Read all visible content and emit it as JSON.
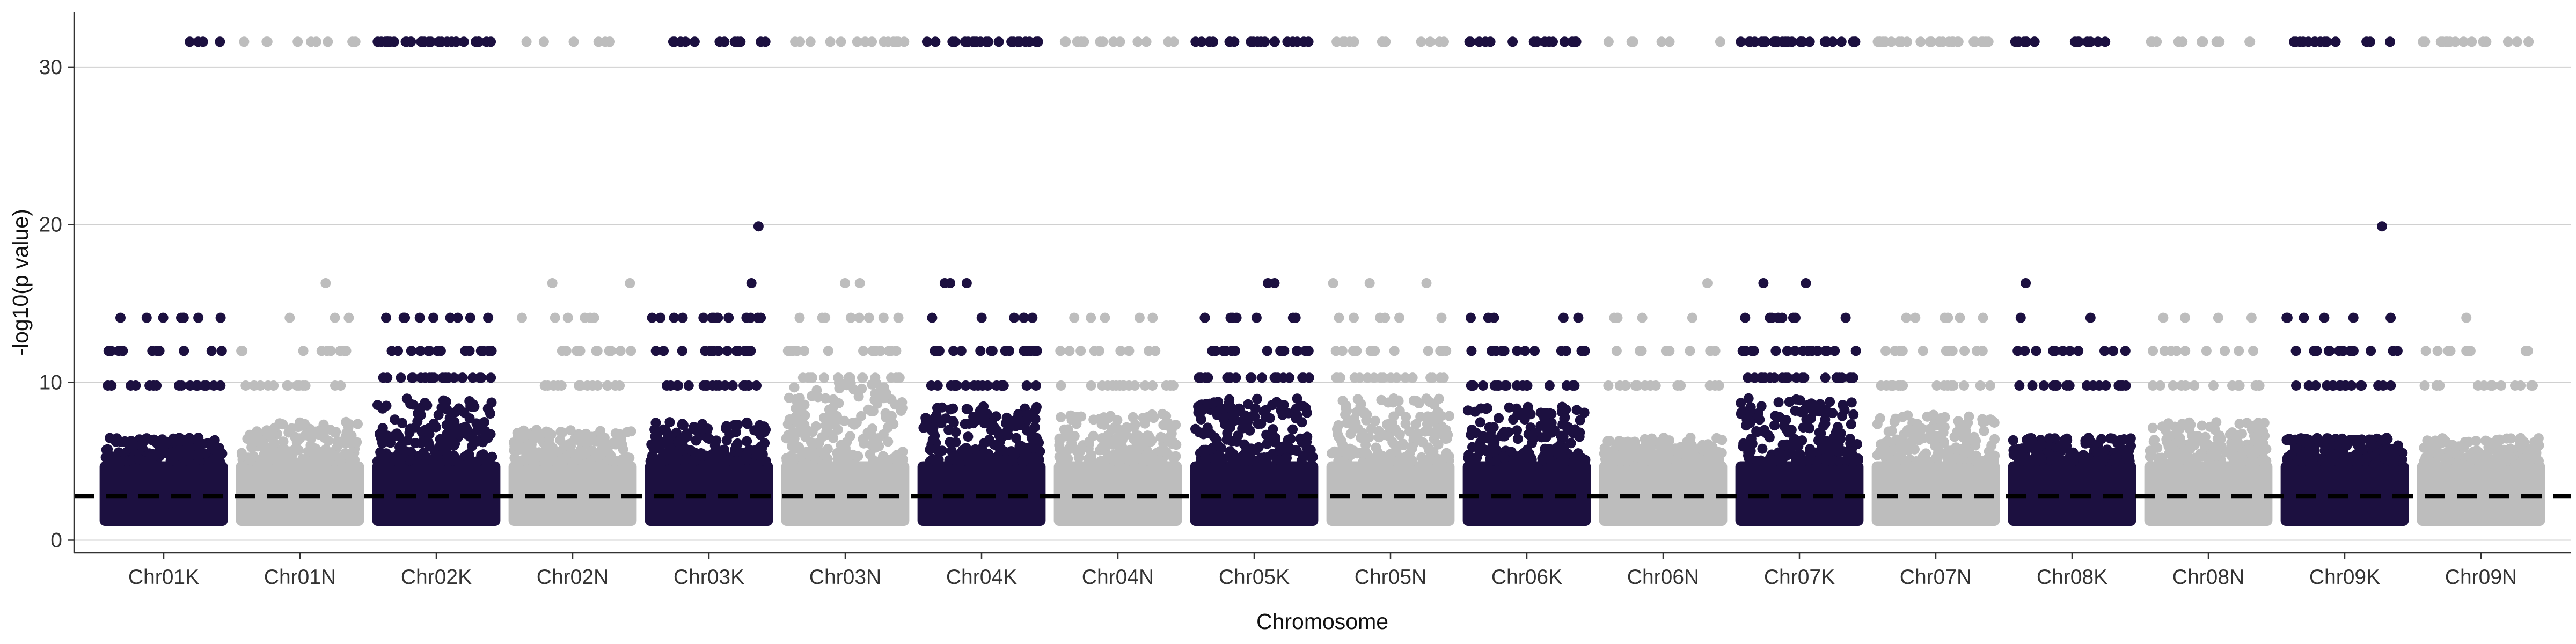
{
  "chart_data": {
    "type": "scatter",
    "title": "",
    "xlabel": "Chromosome",
    "ylabel": "-log10(p value)",
    "ylim": [
      -0.8,
      33.5
    ],
    "y_ticks": [
      0,
      10,
      20,
      30
    ],
    "y_tick_labels": [
      "0",
      "10",
      "20",
      "30"
    ],
    "grid": "horizontal major lines at y=0, 10, 20, 30",
    "legend": "none",
    "threshold": {
      "y": 2.8,
      "style": "dashed",
      "color": "#000000"
    },
    "point_colors": {
      "dark": "#1c1040",
      "light": "#bdbdbd"
    },
    "categories": [
      "Chr01K",
      "Chr01N",
      "Chr02K",
      "Chr02N",
      "Chr03K",
      "Chr03N",
      "Chr04K",
      "Chr04N",
      "Chr05K",
      "Chr05N",
      "Chr06K",
      "Chr06N",
      "Chr07K",
      "Chr07N",
      "Chr08K",
      "Chr08N",
      "Chr09K",
      "Chr09N"
    ],
    "series": [
      {
        "chromosome": "Chr01K",
        "color": "dark",
        "points": [
          {
            "y": 31.6,
            "n": 4
          },
          {
            "y": 14.1,
            "n": 8
          },
          {
            "y": 12,
            "n": 10
          },
          {
            "y": 9.8,
            "n": 16
          }
        ],
        "dense_max": 6.5
      },
      {
        "chromosome": "Chr01N",
        "color": "light",
        "points": [
          {
            "y": 31.6,
            "n": 9
          },
          {
            "y": 16.3,
            "n": 1
          },
          {
            "y": 14.1,
            "n": 3
          },
          {
            "y": 12,
            "n": 10
          },
          {
            "y": 9.8,
            "n": 14
          }
        ],
        "dense_max": 7.5
      },
      {
        "chromosome": "Chr02K",
        "color": "dark",
        "points": [
          {
            "y": 31.6,
            "n": 30
          },
          {
            "y": 14.1,
            "n": 10
          },
          {
            "y": 12,
            "n": 16
          },
          {
            "y": 10.3,
            "n": 20
          }
        ],
        "dense_max": 9
      },
      {
        "chromosome": "Chr02N",
        "color": "light",
        "points": [
          {
            "y": 31.6,
            "n": 7
          },
          {
            "y": 16.3,
            "n": 2
          },
          {
            "y": 14.1,
            "n": 6
          },
          {
            "y": 12,
            "n": 10
          },
          {
            "y": 9.8,
            "n": 14
          }
        ],
        "dense_max": 7
      },
      {
        "chromosome": "Chr03K",
        "color": "dark",
        "points": [
          {
            "y": 31.6,
            "n": 12
          },
          {
            "y": 19.9,
            "n": 1
          },
          {
            "y": 16.3,
            "n": 1
          },
          {
            "y": 14.1,
            "n": 14
          },
          {
            "y": 12,
            "n": 14
          },
          {
            "y": 9.8,
            "n": 18
          }
        ],
        "dense_max": 7.5
      },
      {
        "chromosome": "Chr03N",
        "color": "light",
        "points": [
          {
            "y": 31.6,
            "n": 14
          },
          {
            "y": 16.3,
            "n": 2
          },
          {
            "y": 14.1,
            "n": 8
          },
          {
            "y": 12,
            "n": 14
          },
          {
            "y": 10.3,
            "n": 18
          }
        ],
        "dense_max": 10
      },
      {
        "chromosome": "Chr04K",
        "color": "dark",
        "points": [
          {
            "y": 31.6,
            "n": 22
          },
          {
            "y": 16.3,
            "n": 3
          },
          {
            "y": 14.1,
            "n": 6
          },
          {
            "y": 12,
            "n": 16
          },
          {
            "y": 9.8,
            "n": 18
          }
        ],
        "dense_max": 8.5
      },
      {
        "chromosome": "Chr04N",
        "color": "light",
        "points": [
          {
            "y": 31.6,
            "n": 14
          },
          {
            "y": 14.1,
            "n": 5
          },
          {
            "y": 12,
            "n": 10
          },
          {
            "y": 9.8,
            "n": 16
          }
        ],
        "dense_max": 8
      },
      {
        "chromosome": "Chr05K",
        "color": "dark",
        "points": [
          {
            "y": 31.6,
            "n": 20
          },
          {
            "y": 16.3,
            "n": 2
          },
          {
            "y": 14.1,
            "n": 8
          },
          {
            "y": 12,
            "n": 14
          },
          {
            "y": 10.3,
            "n": 20
          }
        ],
        "dense_max": 9
      },
      {
        "chromosome": "Chr05N",
        "color": "light",
        "points": [
          {
            "y": 31.6,
            "n": 12
          },
          {
            "y": 16.3,
            "n": 3
          },
          {
            "y": 14.1,
            "n": 6
          },
          {
            "y": 12,
            "n": 14
          },
          {
            "y": 10.3,
            "n": 18
          }
        ],
        "dense_max": 9
      },
      {
        "chromosome": "Chr06K",
        "color": "dark",
        "points": [
          {
            "y": 31.6,
            "n": 16
          },
          {
            "y": 14.1,
            "n": 5
          },
          {
            "y": 12,
            "n": 12
          },
          {
            "y": 9.8,
            "n": 18
          }
        ],
        "dense_max": 8.5
      },
      {
        "chromosome": "Chr06N",
        "color": "light",
        "points": [
          {
            "y": 31.6,
            "n": 6
          },
          {
            "y": 16.3,
            "n": 1
          },
          {
            "y": 14.1,
            "n": 4
          },
          {
            "y": 12,
            "n": 8
          },
          {
            "y": 9.8,
            "n": 14
          }
        ],
        "dense_max": 6.5
      },
      {
        "chromosome": "Chr07K",
        "color": "dark",
        "points": [
          {
            "y": 31.6,
            "n": 28
          },
          {
            "y": 16.3,
            "n": 2
          },
          {
            "y": 14.1,
            "n": 8
          },
          {
            "y": 12,
            "n": 16
          },
          {
            "y": 10.3,
            "n": 20
          }
        ],
        "dense_max": 9
      },
      {
        "chromosome": "Chr07N",
        "color": "light",
        "points": [
          {
            "y": 31.6,
            "n": 26
          },
          {
            "y": 14.1,
            "n": 6
          },
          {
            "y": 12,
            "n": 12
          },
          {
            "y": 9.8,
            "n": 16
          }
        ],
        "dense_max": 8
      },
      {
        "chromosome": "Chr08K",
        "color": "dark",
        "points": [
          {
            "y": 31.6,
            "n": 14
          },
          {
            "y": 16.3,
            "n": 1
          },
          {
            "y": 14.1,
            "n": 2
          },
          {
            "y": 12,
            "n": 12
          },
          {
            "y": 9.8,
            "n": 16
          }
        ],
        "dense_max": 6.5
      },
      {
        "chromosome": "Chr08N",
        "color": "light",
        "points": [
          {
            "y": 31.6,
            "n": 12
          },
          {
            "y": 14.1,
            "n": 4
          },
          {
            "y": 12,
            "n": 10
          },
          {
            "y": 9.8,
            "n": 14
          }
        ],
        "dense_max": 7.5
      },
      {
        "chromosome": "Chr09K",
        "color": "dark",
        "points": [
          {
            "y": 31.6,
            "n": 14
          },
          {
            "y": 19.9,
            "n": 1
          },
          {
            "y": 14.1,
            "n": 6
          },
          {
            "y": 12,
            "n": 14
          },
          {
            "y": 9.8,
            "n": 16
          }
        ],
        "dense_max": 6.5
      },
      {
        "chromosome": "Chr09N",
        "color": "light",
        "points": [
          {
            "y": 31.6,
            "n": 16
          },
          {
            "y": 14.1,
            "n": 1
          },
          {
            "y": 12,
            "n": 10
          },
          {
            "y": 9.8,
            "n": 12
          }
        ],
        "dense_max": 6.5
      }
    ]
  }
}
